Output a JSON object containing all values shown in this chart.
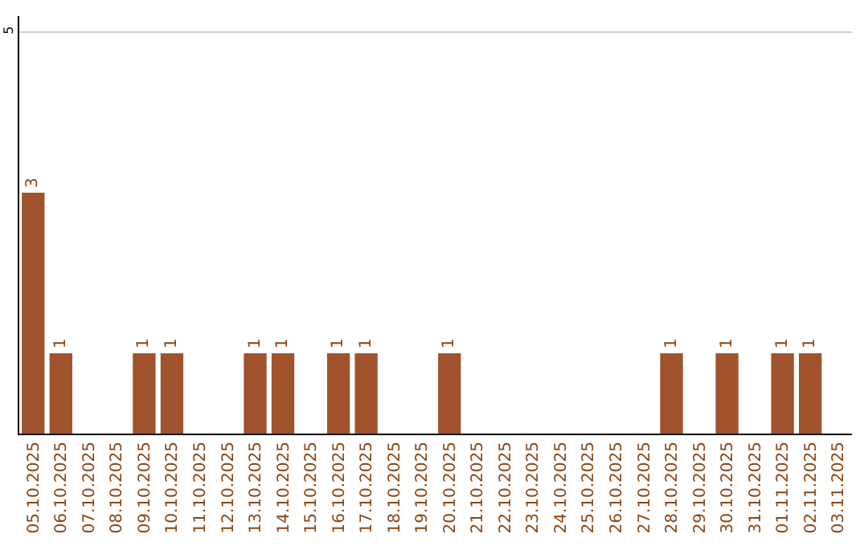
{
  "chart_data": {
    "type": "bar",
    "categories": [
      "05.10.2025",
      "06.10.2025",
      "07.10.2025",
      "08.10.2025",
      "09.10.2025",
      "10.10.2025",
      "11.10.2025",
      "12.10.2025",
      "13.10.2025",
      "14.10.2025",
      "15.10.2025",
      "16.10.2025",
      "17.10.2025",
      "18.10.2025",
      "19.10.2025",
      "20.10.2025",
      "21.10.2025",
      "22.10.2025",
      "23.10.2025",
      "24.10.2025",
      "25.10.2025",
      "26.10.2025",
      "27.10.2025",
      "28.10.2025",
      "29.10.2025",
      "30.10.2025",
      "31.10.2025",
      "01.11.2025",
      "02.11.2025",
      "03.11.2025"
    ],
    "values": [
      3,
      1,
      0,
      0,
      1,
      1,
      0,
      0,
      1,
      1,
      0,
      1,
      1,
      0,
      0,
      1,
      0,
      0,
      0,
      0,
      0,
      0,
      0,
      1,
      0,
      1,
      0,
      1,
      1,
      0
    ],
    "value_labels": [
      "3",
      "1",
      null,
      null,
      "1",
      "1",
      null,
      null,
      "1",
      "1",
      null,
      "1",
      "1",
      null,
      null,
      "1",
      null,
      null,
      null,
      null,
      null,
      null,
      null,
      "1",
      null,
      "1",
      null,
      "1",
      "1",
      null
    ],
    "color": "#a0522d",
    "ylim": [
      0,
      5.2
    ],
    "yticks": [
      5
    ],
    "grid": "y"
  }
}
